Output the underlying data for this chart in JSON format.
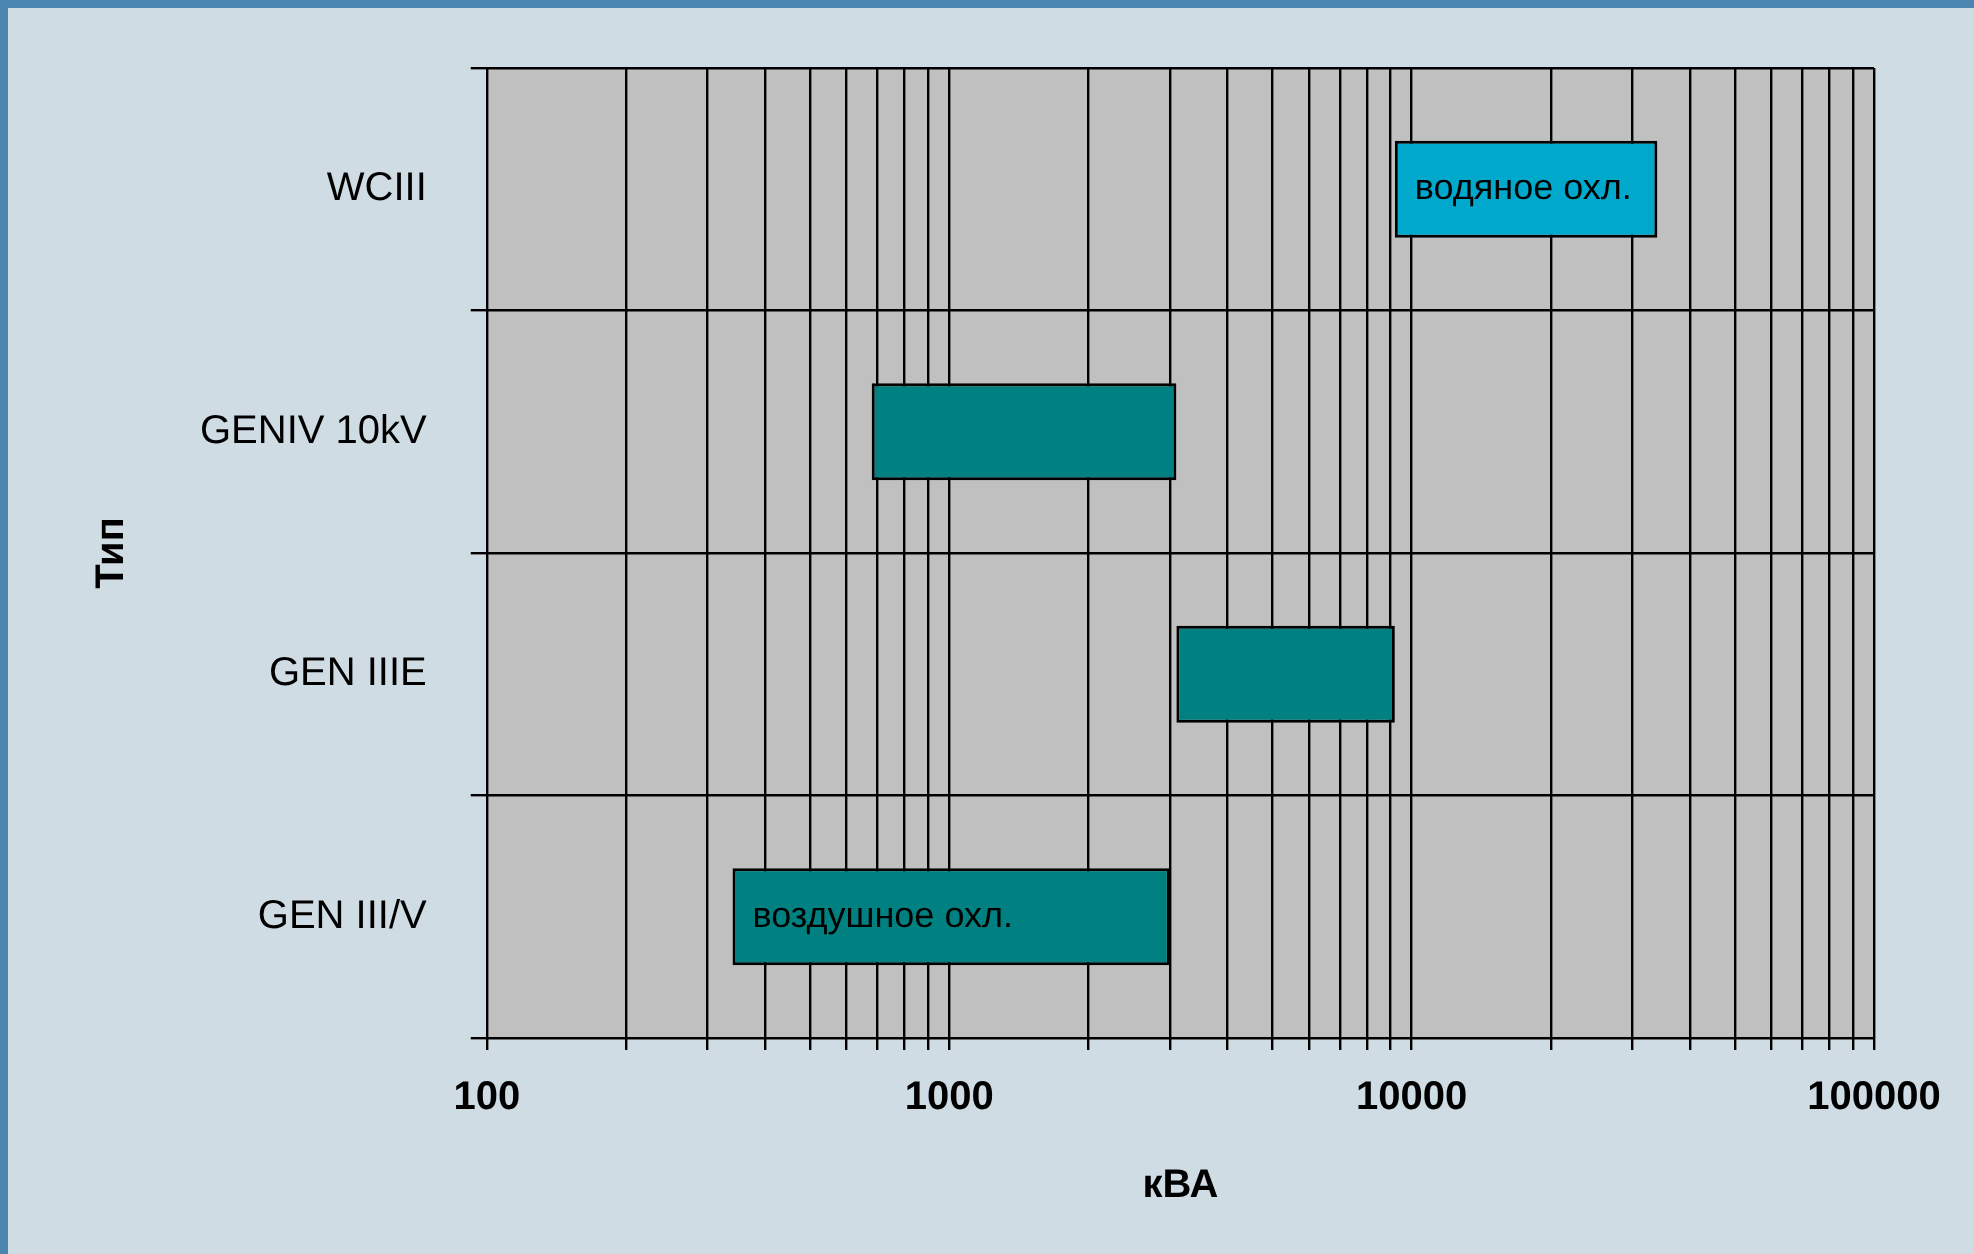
{
  "chart_data": {
    "type": "bar",
    "orientation": "horizontal",
    "xlabel": "кВА",
    "ylabel": "Тип",
    "log": "x",
    "categories": [
      "WCIII",
      "GENIV 10kV",
      "GEN IIIE",
      "GEN III/V"
    ],
    "base": [
      9200,
      680,
      3100,
      340
    ],
    "values": [
      24800,
      2420,
      6100,
      2660
    ],
    "colors": [
      "#00a8cc",
      "#008080",
      "#008080",
      "#008080"
    ],
    "xlim": [
      100,
      100000
    ],
    "xticks": [
      100,
      {
        "value": 200,
        "label": null
      },
      {
        "value": 300,
        "label": null
      },
      {
        "value": 400,
        "label": null
      },
      {
        "value": 500,
        "label": null
      },
      {
        "value": 600,
        "label": null
      },
      {
        "value": 700,
        "label": null
      },
      {
        "value": 800,
        "label": null
      },
      {
        "value": 900,
        "label": null
      },
      1000,
      {
        "value": 2000,
        "label": null
      },
      {
        "value": 3000,
        "label": null
      },
      {
        "value": 4000,
        "label": null
      },
      {
        "value": 5000,
        "label": null
      },
      {
        "value": 6000,
        "label": null
      },
      {
        "value": 7000,
        "label": null
      },
      {
        "value": 8000,
        "label": null
      },
      {
        "value": 9000,
        "label": null
      },
      10000,
      {
        "value": 20000,
        "label": null
      },
      {
        "value": 30000,
        "label": null
      },
      {
        "value": 40000,
        "label": null
      },
      {
        "value": 50000,
        "label": null
      },
      {
        "value": 60000,
        "label": null
      },
      {
        "value": 70000,
        "label": null
      },
      {
        "value": 80000,
        "label": null
      },
      {
        "value": 90000,
        "label": null
      },
      100000
    ],
    "grid": true,
    "legend": false,
    "annotations": [
      {
        "text": "водяное охл.",
        "x": 9200,
        "y": "WCIII"
      },
      {
        "text": "воздушное охл.",
        "x": 340,
        "y": "GEN III/V"
      }
    ]
  }
}
